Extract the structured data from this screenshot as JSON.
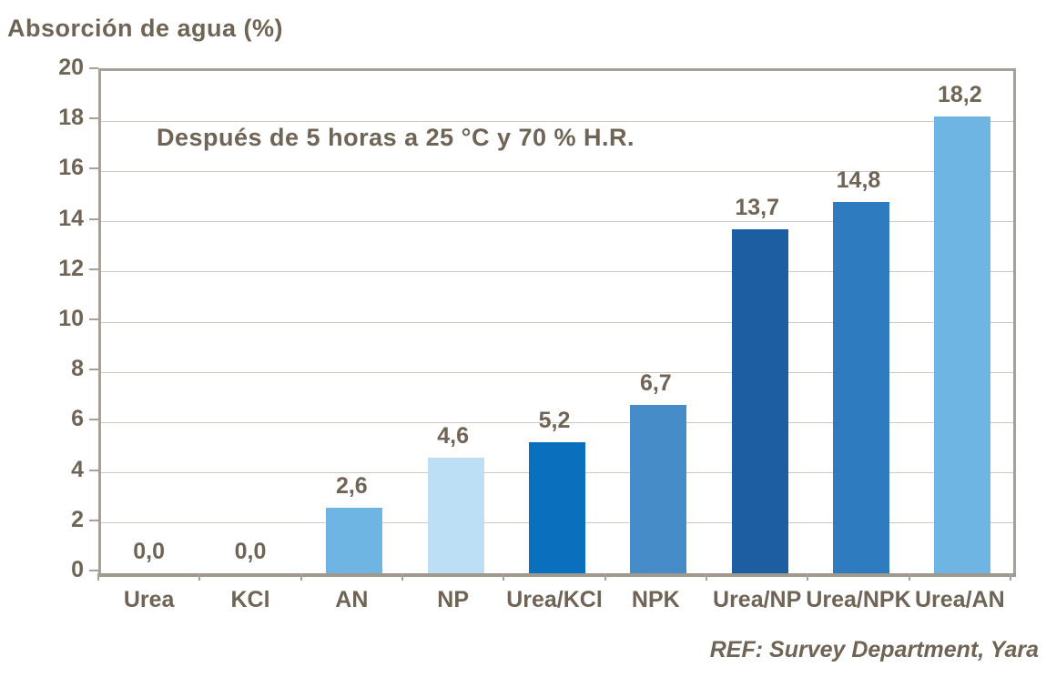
{
  "title": "Absorción de agua (%)",
  "annotation": "Después de 5 horas a 25 °C y 70 % H.R.",
  "footer": "REF: Survey Department, Yara",
  "colors": {
    "text_brown": "#6f6455",
    "plot_border": "#a7a19a",
    "gridline": "#ccc8c2",
    "baseline": "#9e988e"
  },
  "chart_data": {
    "type": "bar",
    "title": "Absorción de agua (%)",
    "subtitle": "Después de 5 horas a 25 °C y 70 % H.R.",
    "categories": [
      "Urea",
      "KCl",
      "AN",
      "NP",
      "Urea/KCl",
      "NPK",
      "Urea/NP",
      "Urea/NPK",
      "Urea/AN"
    ],
    "values": [
      0.0,
      0.0,
      2.6,
      4.6,
      5.2,
      6.7,
      13.7,
      14.8,
      18.2
    ],
    "value_labels": [
      "0,0",
      "0,0",
      "2,6",
      "4,6",
      "5,2",
      "6,7",
      "13,7",
      "14,8",
      "18,2"
    ],
    "bar_colors": [
      "#6fb5e3",
      "#6fb5e3",
      "#6fb5e3",
      "#bcdff5",
      "#0a70bd",
      "#458cc8",
      "#1d5da1",
      "#2e7bbf",
      "#6fb5e3"
    ],
    "xlabel": "",
    "ylabel": "Absorción de agua (%)",
    "ylim": [
      0,
      20
    ],
    "yticks": [
      0,
      2,
      4,
      6,
      8,
      10,
      12,
      14,
      16,
      18,
      20
    ],
    "grid": true,
    "legend": false,
    "source": "REF: Survey Department, Yara"
  }
}
